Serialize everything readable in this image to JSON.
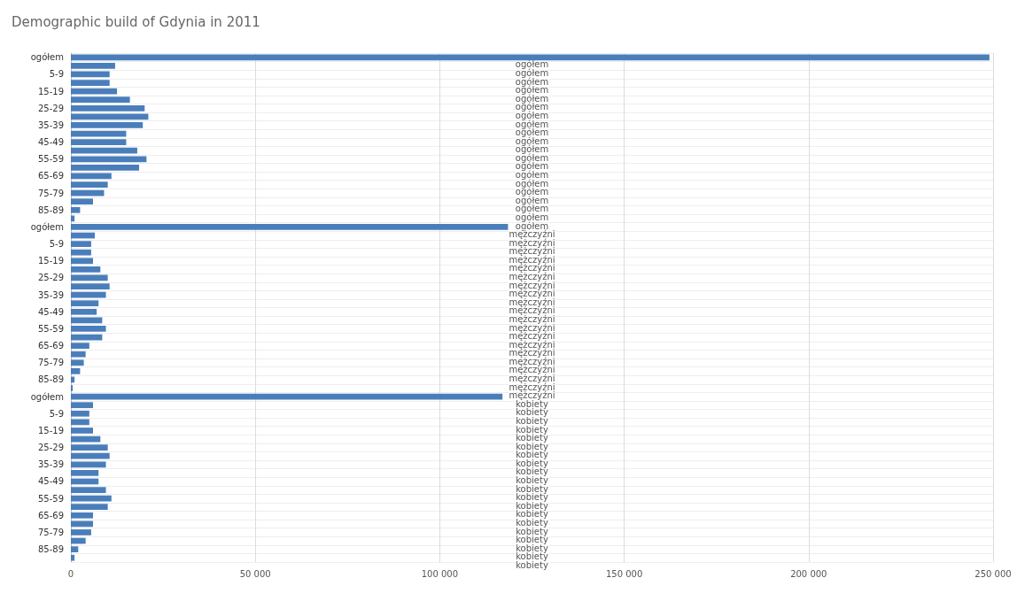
{
  "chart_data": {
    "type": "bar",
    "orientation": "horizontal",
    "title": "Demographic build of Gdynia in 2011",
    "categories": [
      "ogółem",
      null,
      "5-9",
      null,
      "15-19",
      null,
      "25-29",
      null,
      "35-39",
      null,
      "45-49",
      null,
      "55-59",
      null,
      "65-69",
      null,
      "75-79",
      null,
      "85-89",
      null,
      "ogółem",
      null,
      "5-9",
      null,
      "15-19",
      null,
      "25-29",
      null,
      "35-39",
      null,
      "45-49",
      null,
      "55-59",
      null,
      "65-69",
      null,
      "75-79",
      null,
      "85-89",
      null,
      "ogółem",
      null,
      "5-9",
      null,
      "15-19",
      null,
      "25-29",
      null,
      "35-39",
      null,
      "45-49",
      null,
      "55-59",
      null,
      "65-69",
      null,
      "75-79",
      null,
      "85-89",
      null
    ],
    "values": [
      249000,
      12000,
      10500,
      10500,
      12500,
      16000,
      20000,
      21000,
      19500,
      15000,
      15000,
      18000,
      20500,
      18500,
      11000,
      10000,
      9000,
      6000,
      2500,
      1000,
      118500,
      6500,
      5500,
      5500,
      6000,
      8000,
      10000,
      10500,
      9500,
      7500,
      7000,
      8500,
      9500,
      8500,
      5000,
      4000,
      3500,
      2500,
      1000,
      500,
      117000,
      6000,
      5000,
      5000,
      6000,
      8000,
      10000,
      10500,
      9500,
      7500,
      7500,
      9500,
      11000,
      10000,
      6000,
      6000,
      5500,
      4000,
      2000,
      1000
    ],
    "annotations": [
      "ogółem",
      "ogółem",
      "ogółem",
      "ogółem",
      "ogółem",
      "ogółem",
      "ogółem",
      "ogółem",
      "ogółem",
      "ogółem",
      "ogółem",
      "ogółem",
      "ogółem",
      "ogółem",
      "ogółem",
      "ogółem",
      "ogółem",
      "ogółem",
      "ogółem",
      "ogółem",
      "mężczyźni",
      "mężczyźni",
      "mężczyźni",
      "mężczyźni",
      "mężczyźni",
      "mężczyźni",
      "mężczyźni",
      "mężczyźni",
      "mężczyźni",
      "mężczyźni",
      "mężczyźni",
      "mężczyźni",
      "mężczyźni",
      "mężczyźni",
      "mężczyźni",
      "mężczyźni",
      "mężczyźni",
      "mężczyźni",
      "mężczyźni",
      "mężczyźni",
      "kobiety",
      "kobiety",
      "kobiety",
      "kobiety",
      "kobiety",
      "kobiety",
      "kobiety",
      "kobiety",
      "kobiety",
      "kobiety",
      "kobiety",
      "kobiety",
      "kobiety",
      "kobiety",
      "kobiety",
      "kobiety",
      "kobiety",
      "kobiety",
      "kobiety",
      "kobiety"
    ],
    "color": "#4a7ebb",
    "xlim": [
      0,
      250000
    ],
    "xticks": [
      0,
      {
        "value": 50000,
        "label": "50 000"
      },
      {
        "value": 100000,
        "label": "100 000"
      },
      {
        "value": 150000,
        "label": "150 000"
      },
      {
        "value": 200000,
        "label": "200 000"
      },
      {
        "value": 250000,
        "label": "250 000"
      }
    ],
    "grid": true
  }
}
